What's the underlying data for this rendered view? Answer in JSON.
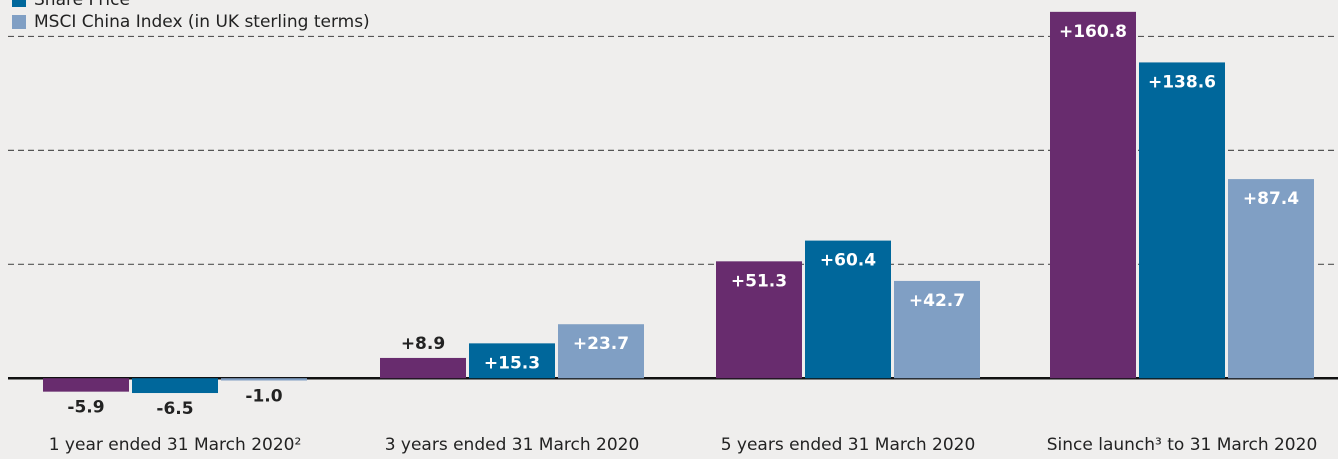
{
  "chart_data": {
    "type": "bar",
    "categories": [
      "1 year ended 31 March 2020²",
      "3 years ended 31 March 2020",
      "5 years ended 31 March 2020",
      "Since launch³ to 31 March 2020"
    ],
    "series": [
      {
        "color": "#682c6e",
        "values": [
          -5.9,
          8.9,
          51.3,
          160.8
        ],
        "value_labels": [
          "-5.9",
          "+8.9",
          "+51.3",
          "+160.8"
        ]
      },
      {
        "name": "Share Price",
        "color": "#00679b",
        "values": [
          -6.5,
          15.3,
          60.4,
          138.6
        ],
        "value_labels": [
          "-6.5",
          "+15.3",
          "+60.4",
          "+138.6"
        ]
      },
      {
        "name": "MSCI China Index (in UK sterling terms)",
        "color": "#809fc4",
        "values": [
          -1.0,
          23.7,
          42.7,
          87.4
        ],
        "value_labels": [
          "-1.0",
          "+23.7",
          "+42.7",
          "+87.4"
        ]
      }
    ],
    "ylim": [
      -10,
      166
    ],
    "yticks": [
      0,
      50,
      100,
      150
    ],
    "grid": true,
    "legend": "top-left"
  }
}
